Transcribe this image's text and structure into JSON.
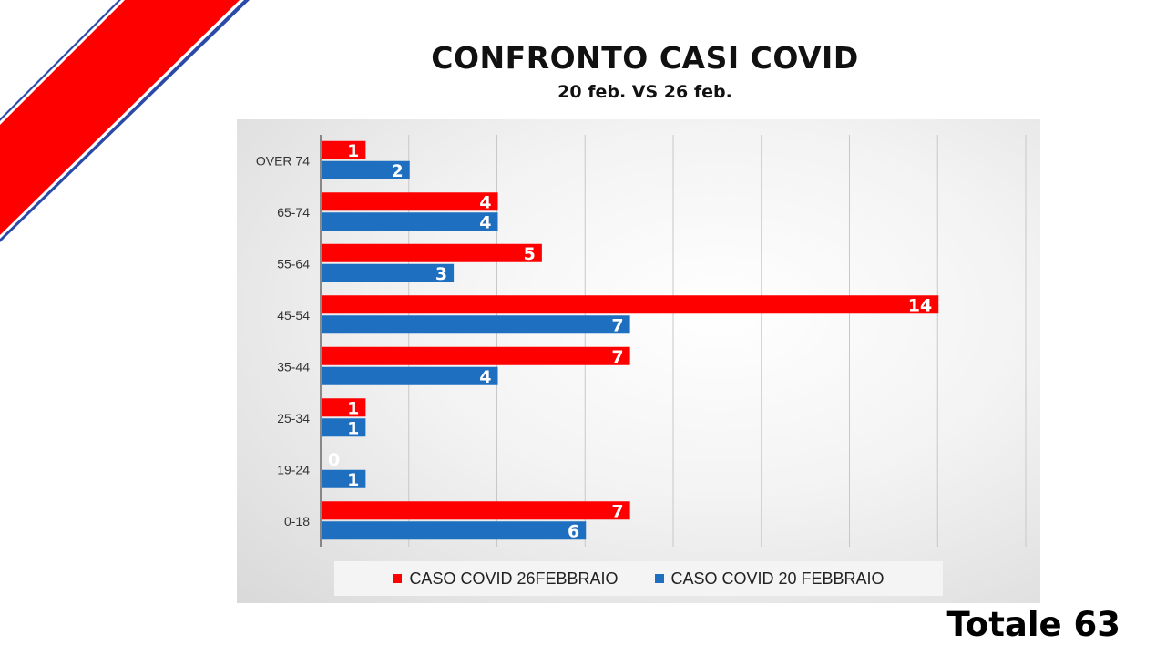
{
  "title": "CONFRONTO CASI COVID",
  "subtitle": "20 feb. VS 26 feb.",
  "total_label": "Totale 63",
  "colors": {
    "accent_red": "#ff0000",
    "accent_blue": "#1f6fc1",
    "stripe_blue": "#2b4aa8"
  },
  "chart_data": {
    "type": "bar",
    "orientation": "horizontal",
    "title": "",
    "xlabel": "",
    "ylabel": "",
    "categories": [
      "OVER 74",
      "65-74",
      "55-64",
      "45-54",
      "35-44",
      "25-34",
      "19-24",
      "0-18"
    ],
    "series": [
      {
        "name": "CASO COVID 26FEBBRAIO",
        "color": "#ff0000",
        "values": [
          1,
          4,
          5,
          14,
          7,
          1,
          0,
          7
        ]
      },
      {
        "name": "CASO COVID 20 FEBBRAIO",
        "color": "#1f6fc1",
        "values": [
          2,
          4,
          3,
          7,
          4,
          1,
          1,
          6
        ]
      }
    ],
    "xlim": [
      0,
      16
    ],
    "grid": true,
    "data_labels": true,
    "legend_position": "bottom"
  }
}
